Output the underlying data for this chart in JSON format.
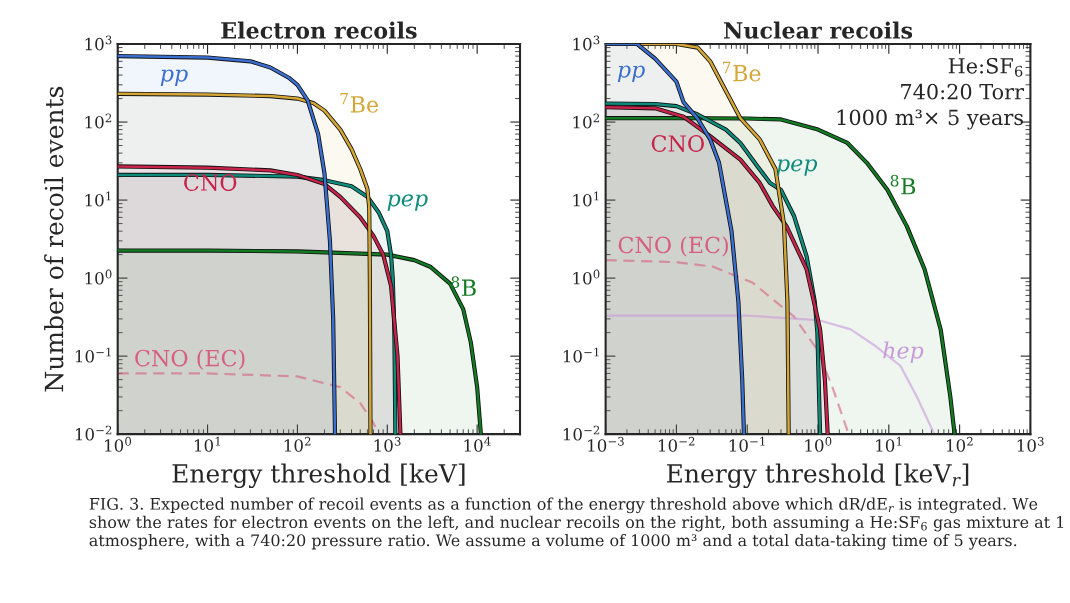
{
  "chart_data": [
    {
      "type": "area",
      "title": "Electron recoils",
      "xlabel": "Energy threshold [keV]",
      "ylabel": "Number of recoil events",
      "log": "xy",
      "xlim": [
        1,
        30000
      ],
      "ylim": [
        0.01,
        1000
      ],
      "xticks": [
        {
          "value": 1,
          "label": "10$^{0}$"
        },
        {
          "value": 10,
          "label": "10$^{1}$"
        },
        {
          "value": 100,
          "label": "10$^{2}$"
        },
        {
          "value": 1000,
          "label": "10$^{3}$"
        },
        {
          "value": 10000,
          "label": "10$^{4}$"
        }
      ],
      "yticks": [
        {
          "value": 0.01,
          "label": "10$^{−2}$"
        },
        {
          "value": 0.1,
          "label": "10$^{−1}$"
        },
        {
          "value": 1,
          "label": "10$^{0}$"
        },
        {
          "value": 10,
          "label": "10$^{1}$"
        },
        {
          "value": 100,
          "label": "10$^{2}$"
        },
        {
          "value": 1000,
          "label": "10$^{3}$"
        }
      ],
      "annotations": [
        "FIG. 3. Expected number of recoil events as a function of the energy threshold above which dR/dE$_{r}$ is integrated. We show the rates for electron events on the left, and nuclear recoils on the right, both assuming a He:SF$_{6}$ gas mixture at 1 atmosphere, with a 740:20 pressure ratio. We assume a volume of 1000 m³ and a total data-taking time of 5 years."
      ],
      "series": [
        {
          "name": "pp",
          "color": "#3a6fd0",
          "x": [
            1,
            10,
            30,
            50,
            80,
            100,
            130,
            170,
            200,
            230,
            250,
            262
          ],
          "values": [
            700,
            670,
            600,
            500,
            370,
            300,
            190,
            70,
            22,
            3,
            0.3,
            0.01
          ]
        },
        {
          "name": "$^{7}$Be",
          "color": "#d4a637",
          "x": [
            1,
            10,
            50,
            100,
            150,
            200,
            300,
            400,
            500,
            600,
            630,
            640,
            650
          ],
          "values": [
            230,
            225,
            215,
            200,
            175,
            140,
            80,
            45,
            25,
            14,
            8,
            1,
            0.01
          ]
        },
        {
          "name": "CNO",
          "color": "#c8234a",
          "x": [
            1,
            10,
            50,
            100,
            200,
            300,
            500,
            700,
            900,
            1100,
            1300,
            1400
          ],
          "values": [
            27,
            26,
            24,
            21,
            16,
            11,
            6,
            3.5,
            2,
            0.8,
            0.1,
            0.01
          ]
        },
        {
          "name": "pep",
          "color": "#0e8b7b",
          "x": [
            1,
            10,
            100,
            200,
            400,
            600,
            800,
            1000,
            1100,
            1150,
            1200,
            1230
          ],
          "values": [
            21,
            21,
            20,
            18,
            15,
            11,
            7,
            4,
            2,
            1,
            0.2,
            0.01
          ]
        },
        {
          "name": "$^{8}$B",
          "color": "#127a22",
          "x": [
            1,
            10,
            100,
            1000,
            2000,
            3000,
            5000,
            7000,
            8500,
            10000,
            11000
          ],
          "values": [
            2.25,
            2.25,
            2.2,
            2.0,
            1.7,
            1.4,
            0.85,
            0.4,
            0.15,
            0.04,
            0.01
          ]
        },
        {
          "name": "CNO (EC)",
          "color": "#d6607f",
          "type": "line",
          "line_style": "dashed",
          "x": [
            1,
            10,
            100,
            300,
            500,
            700,
            800
          ],
          "values": [
            0.06,
            0.06,
            0.055,
            0.04,
            0.025,
            0.014,
            0.01
          ]
        }
      ]
    },
    {
      "type": "area",
      "title": "Nuclear recoils",
      "xlabel": "Energy threshold [keV$_{r}$]",
      "log": "xy",
      "xlim": [
        0.001,
        1000
      ],
      "ylim": [
        0.01,
        1000
      ],
      "xticks": [
        {
          "value": 0.001,
          "label": "10$^{−3}$"
        },
        {
          "value": 0.01,
          "label": "10$^{−2}$"
        },
        {
          "value": 0.1,
          "label": "10$^{−1}$"
        },
        {
          "value": 1,
          "label": "10$^{0}$"
        },
        {
          "value": 10,
          "label": "10$^{1}$"
        },
        {
          "value": 100,
          "label": "10$^{2}$"
        },
        {
          "value": 1000,
          "label": "10$^{3}$"
        }
      ],
      "yticks": [
        {
          "value": 0.01,
          "label": "10$^{−2}$"
        },
        {
          "value": 0.1,
          "label": "10$^{−1}$"
        },
        {
          "value": 1,
          "label": "10$^{0}$"
        },
        {
          "value": 10,
          "label": "10$^{1}$"
        },
        {
          "value": 100,
          "label": "10$^{2}$"
        },
        {
          "value": 1000,
          "label": "10$^{3}$"
        }
      ],
      "annotations": [
        "He:SF$_{6}$\n740:20 Torr\n1000 m³× 5 years"
      ],
      "series": [
        {
          "name": "pp",
          "color": "#3a6fd0",
          "x": [
            0.001,
            0.0028,
            0.005,
            0.01,
            0.0126,
            0.02,
            0.03,
            0.04,
            0.06,
            0.075,
            0.085,
            0.09
          ],
          "values": [
            1000,
            1000,
            650,
            330,
            180,
            110,
            60,
            30,
            4,
            0.5,
            0.05,
            0.01
          ]
        },
        {
          "name": "$^{7}$Be",
          "color": "#d4a637",
          "x": [
            0.001,
            0.01,
            0.02,
            0.03,
            0.05,
            0.08,
            0.15,
            0.25,
            0.33,
            0.37,
            0.385
          ],
          "values": [
            1000,
            1000,
            900,
            600,
            250,
            112,
            60,
            25,
            5,
            0.5,
            0.01
          ]
        },
        {
          "name": "CNO",
          "color": "#c8234a",
          "x": [
            0.001,
            0.005,
            0.0126,
            0.03,
            0.08,
            0.15,
            0.23,
            0.36,
            0.69,
            1.07,
            1.25,
            1.37
          ],
          "values": [
            155,
            150,
            117,
            66,
            33,
            16.6,
            8.3,
            4.6,
            1.3,
            0.22,
            0.05,
            0.01
          ]
        },
        {
          "name": "pep",
          "color": "#0e8b7b",
          "x": [
            0.001,
            0.005,
            0.01,
            0.02,
            0.05,
            0.08,
            0.14,
            0.21,
            0.3,
            0.46,
            0.69,
            0.9,
            0.98,
            1.07
          ],
          "values": [
            173,
            170,
            160,
            125,
            80,
            54,
            27,
            16.6,
            13.5,
            6.2,
            1.9,
            0.5,
            0.2,
            0.01
          ]
        },
        {
          "name": "$^{8}$B",
          "color": "#127a22",
          "x": [
            0.001,
            0.01,
            0.1,
            0.3,
            1,
            2.6,
            4.9,
            9.6,
            18,
            32,
            54,
            74,
            85
          ],
          "values": [
            112,
            112,
            111,
            108,
            80,
            54,
            30,
            13.5,
            4.6,
            1.3,
            0.22,
            0.03,
            0.01
          ]
        },
        {
          "name": "CNO (EC)",
          "color": "#d6607f",
          "type": "line",
          "line_style": "dashed",
          "x": [
            0.001,
            0.01,
            0.033,
            0.12,
            0.46,
            0.98,
            1.65,
            2.7
          ],
          "values": [
            1.7,
            1.6,
            1.4,
            0.87,
            0.32,
            0.12,
            0.037,
            0.01
          ]
        },
        {
          "name": "hep",
          "color": "#c89ad8",
          "type": "line",
          "x": [
            0.001,
            0.1,
            1,
            2.9,
            6.1,
            14.6,
            25,
            44
          ],
          "values": [
            0.33,
            0.33,
            0.29,
            0.22,
            0.14,
            0.075,
            0.03,
            0.01
          ]
        }
      ]
    }
  ]
}
